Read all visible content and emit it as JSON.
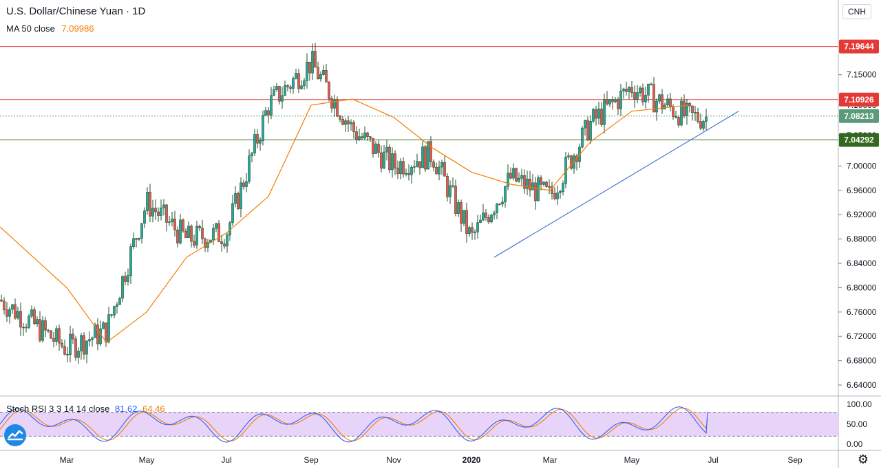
{
  "header": {
    "symbol_title": "U.S. Dollar/Chinese Yuan · 1D",
    "ma_label": "MA 50 close",
    "ma_value": "7.09986"
  },
  "symbol_badge": "CNH",
  "rsi": {
    "label": "Stoch RSI 3 3 14 14 close",
    "k_value": "81.62",
    "d_value": "64.46",
    "ticks": [
      "100.00",
      "50.00",
      "0.00"
    ],
    "upper_band": 80,
    "lower_band": 20
  },
  "price_axis_ticks": [
    "7.15000",
    "7.10000",
    "7.05000",
    "7.00000",
    "6.96000",
    "6.92000",
    "6.88000",
    "6.84000",
    "6.80000",
    "6.76000",
    "6.72000",
    "6.68000",
    "6.64000"
  ],
  "time_axis_ticks": [
    "Mar",
    "May",
    "Jul",
    "Sep",
    "Nov",
    "2020",
    "Mar",
    "May",
    "Jul",
    "Sep"
  ],
  "levels": [
    {
      "label": "7.19644",
      "value": 7.19644,
      "color": "#e53935",
      "kind": "resistance"
    },
    {
      "label": "7.10926",
      "value": 7.10926,
      "color": "#e53935",
      "kind": "resistance"
    },
    {
      "label": "7.08213",
      "value": 7.08213,
      "color": "#5b9a7a",
      "kind": "last-price"
    },
    {
      "label": "7.04292",
      "value": 7.04292,
      "color": "#33691e",
      "kind": "support"
    }
  ],
  "colors": {
    "up": "#26a69a",
    "down": "#ef5350",
    "candle": "#1f4d2b",
    "ma": "#f57c00",
    "trendline": "#4a78d6",
    "rsi_k": "#2962ff",
    "rsi_d": "#f57c00",
    "rsi_band_fill": "#e1c6f7"
  },
  "chart_data": {
    "type": "line",
    "title": "U.S. Dollar/Chinese Yuan · 1D",
    "ylabel": "",
    "xlabel": "",
    "ylim": [
      6.62,
      7.24
    ],
    "x": [
      "2019-02",
      "2019-03",
      "2019-04",
      "2019-05",
      "2019-06",
      "2019-07",
      "2019-08",
      "2019-09",
      "2019-10",
      "2019-11",
      "2019-12",
      "2020-01",
      "2020-02",
      "2020-03",
      "2020-04",
      "2020-05",
      "2020-06"
    ],
    "series": [
      {
        "name": "U.S. Dollar/Chinese Yuan",
        "values": [
          6.78,
          6.7,
          6.73,
          6.94,
          6.88,
          6.89,
          7.1,
          7.17,
          7.06,
          7.0,
          7.02,
          6.88,
          6.98,
          6.95,
          7.07,
          7.13,
          7.08
        ]
      },
      {
        "name": "MA 50 close",
        "values": [
          6.9,
          6.8,
          6.71,
          6.76,
          6.85,
          6.89,
          6.95,
          7.1,
          7.11,
          7.08,
          7.03,
          6.99,
          6.97,
          6.96,
          7.04,
          7.09,
          7.1
        ]
      }
    ],
    "trendline": {
      "from": [
        "2020-01-10",
        6.85
      ],
      "to": [
        "2020-07-20",
        7.09
      ]
    },
    "stoch_rsi": {
      "k": 81.62,
      "d": 64.46
    }
  }
}
